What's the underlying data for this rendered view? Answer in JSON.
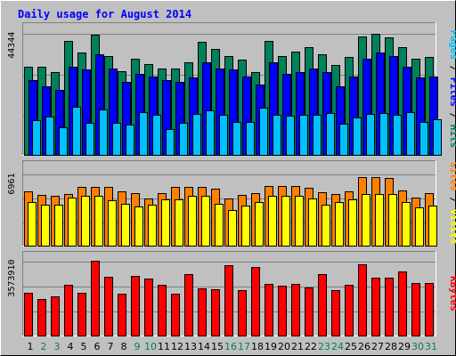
{
  "chart_data": {
    "type": "bar",
    "title": "Daily usage for August 2014",
    "x": [
      "1",
      "2",
      "3",
      "4",
      "5",
      "6",
      "7",
      "8",
      "9",
      "10",
      "11",
      "12",
      "13",
      "14",
      "15",
      "16",
      "17",
      "18",
      "19",
      "20",
      "21",
      "22",
      "23",
      "24",
      "25",
      "26",
      "27",
      "28",
      "29",
      "30",
      "31"
    ],
    "weekend_days": [
      "2",
      "3",
      "9",
      "10",
      "16",
      "17",
      "23",
      "24",
      "30",
      "31"
    ],
    "colors": {
      "background": "#c0c0c0",
      "title": "#0000ff",
      "weekday_label": "#000000",
      "weekend_label": "#00805c",
      "hits": "#00805c",
      "files": "#0000ff",
      "pages": "#00c0ff",
      "visits": "#ffff00",
      "sites": "#ff8000",
      "kbytes": "#ff0000"
    },
    "panels": [
      {
        "max_label": "44344",
        "ylim": [
          0,
          44344
        ],
        "legend": [
          {
            "text": "Pages",
            "color": "#00c0ff"
          },
          {
            "text": " / ",
            "color": "#000000"
          },
          {
            "text": "Files",
            "color": "#0000ff"
          },
          {
            "text": " / ",
            "color": "#000000"
          },
          {
            "text": "Hits",
            "color": "#00805c"
          }
        ],
        "series": [
          {
            "name": "Hits",
            "color": "#00805c",
            "values": [
              32000,
              32000,
              30000,
              41500,
              37000,
              43500,
              36000,
              30500,
              35000,
              33000,
              31500,
              31500,
              33500,
              41000,
              38500,
              36000,
              34500,
              30000,
              41500,
              36000,
              37500,
              39000,
              36500,
              32500,
              35500,
              43000,
              43800,
              42500,
              39000,
              35000,
              35500
            ]
          },
          {
            "name": "Files",
            "color": "#0000ff",
            "values": [
              27000,
              25000,
              23500,
              32000,
              31000,
              36500,
              31500,
              26500,
              29500,
              28500,
              27000,
              26500,
              28000,
              33500,
              31500,
              31000,
              28500,
              25500,
              33500,
              29500,
              30000,
              31500,
              30000,
              25000,
              28500,
              35000,
              37000,
              36000,
              32000,
              28000,
              28500
            ]
          },
          {
            "name": "Pages",
            "color": "#00c0ff",
            "values": [
              12500,
              14000,
              10000,
              17500,
              11700,
              16500,
              11500,
              11000,
              15500,
              14500,
              9500,
              11500,
              15000,
              16000,
              14500,
              12000,
              12000,
              17000,
              14500,
              14200,
              14700,
              14700,
              15200,
              11400,
              13700,
              14900,
              15200,
              14700,
              15500,
              11900,
              12900
            ]
          }
        ]
      },
      {
        "max_label": "6961",
        "ylim": [
          0,
          6961
        ],
        "legend": [
          {
            "text": "Sites",
            "color": "#ff8000"
          },
          {
            "text": " / ",
            "color": "#000000"
          },
          {
            "text": "Visits",
            "color": "#ffff00"
          }
        ],
        "series": [
          {
            "name": "Sites",
            "color": "#ff8000",
            "values": [
              5300,
              4900,
              4800,
              5000,
              5700,
              5700,
              5700,
              5300,
              5100,
              4600,
              5100,
              5700,
              5700,
              5700,
              5500,
              4600,
              4900,
              5100,
              5800,
              5800,
              5800,
              5600,
              5200,
              5000,
              5300,
              6700,
              6700,
              6600,
              5400,
              4700,
              5100
            ]
          },
          {
            "name": "Visits",
            "color": "#ffff00",
            "values": [
              4200,
              4000,
              4000,
              4700,
              4800,
              4800,
              4400,
              4100,
              3800,
              4000,
              4500,
              4500,
              4800,
              4800,
              4100,
              3500,
              3900,
              4200,
              4800,
              4800,
              4800,
              4600,
              4000,
              4200,
              4500,
              5000,
              5000,
              5000,
              4200,
              3700,
              3900
            ]
          }
        ]
      },
      {
        "max_label": "3573910",
        "ylim": [
          0,
          3573910
        ],
        "legend": [
          {
            "text": "KBytes",
            "color": "#ff0000"
          }
        ],
        "series": [
          {
            "name": "KBytes",
            "color": "#ff0000",
            "values": [
              2050,
              1750,
              1850,
              2400,
              2050,
              3573,
              2800,
              2000,
              2850,
              2700,
              2400,
              2000,
              2900,
              2250,
              2200,
              3350,
              2150,
              3250,
              2450,
              2350,
              2450,
              2300,
              2900,
              2150,
              2400,
              3400,
              2750,
              2750,
              3050,
              2500,
              2500
            ]
          }
        ]
      }
    ]
  }
}
